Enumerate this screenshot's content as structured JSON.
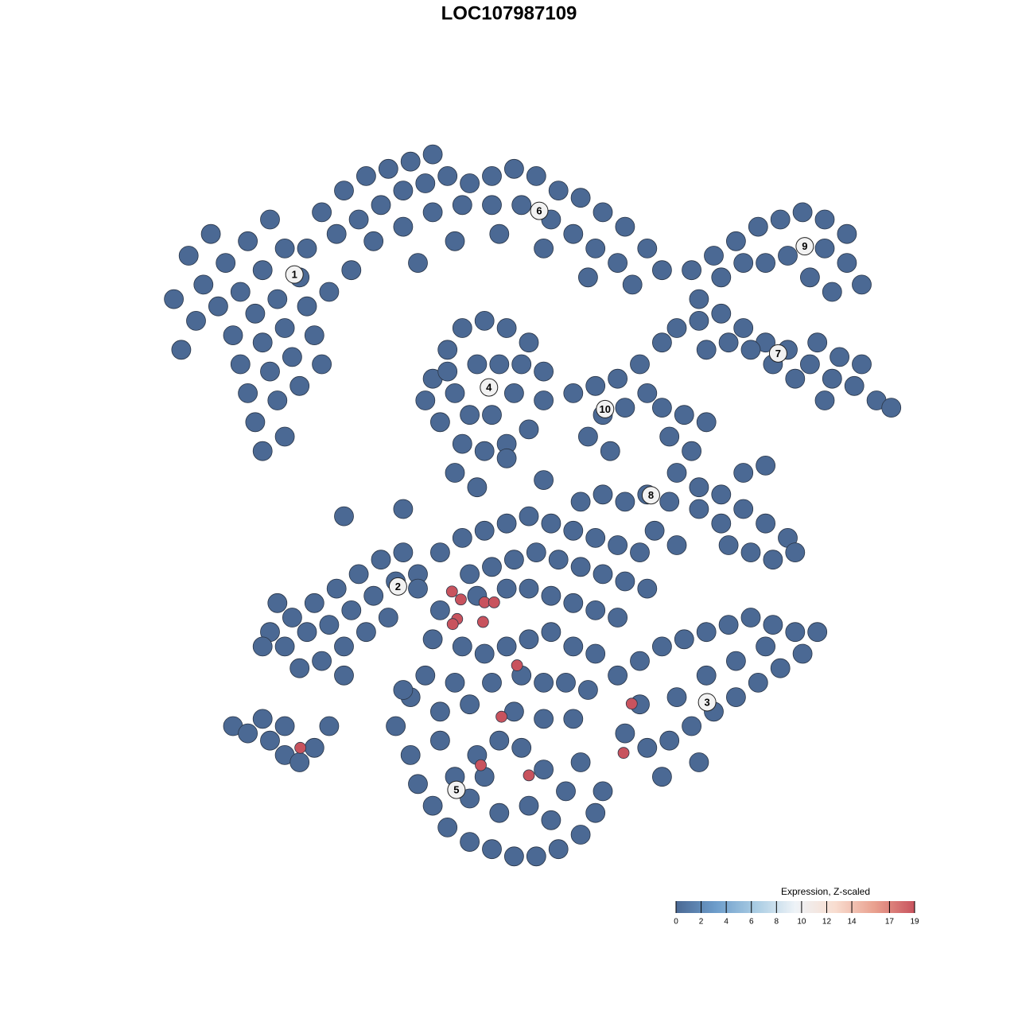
{
  "chart_data": {
    "type": "scatter",
    "title": "LOC107987109",
    "xlim": [
      0,
      100
    ],
    "ylim": [
      0,
      100
    ],
    "colorbar": {
      "title": "Expression, Z-scaled",
      "lim": [
        0,
        19
      ],
      "ticks": [
        0,
        2,
        4,
        6,
        8,
        10,
        12,
        14,
        17,
        19
      ],
      "colors": [
        "#4b6994",
        "#6d9dcb",
        "#a9cce3",
        "#eef3f7",
        "#f8ddd0",
        "#e9a08e",
        "#c8535e"
      ]
    },
    "cluster_labels": [
      {
        "text": "1",
        "x": 18.3,
        "y": 82.4
      },
      {
        "text": "6",
        "x": 51.4,
        "y": 91.2
      },
      {
        "text": "9",
        "x": 87.3,
        "y": 86.3
      },
      {
        "text": "7",
        "x": 83.7,
        "y": 71.5
      },
      {
        "text": "4",
        "x": 44.6,
        "y": 66.8
      },
      {
        "text": "10",
        "x": 60.3,
        "y": 63.8
      },
      {
        "text": "8",
        "x": 66.5,
        "y": 51.9
      },
      {
        "text": "2",
        "x": 32.3,
        "y": 39.3
      },
      {
        "text": "3",
        "x": 74.1,
        "y": 23.3
      },
      {
        "text": "5",
        "x": 40.2,
        "y": 11.2
      }
    ],
    "points": [
      [
        3,
        72,
        0
      ],
      [
        5,
        76,
        0
      ],
      [
        2,
        79,
        0
      ],
      [
        6,
        81,
        0
      ],
      [
        9,
        84,
        0
      ],
      [
        12,
        87,
        0
      ],
      [
        15,
        90,
        0
      ],
      [
        8,
        78,
        0
      ],
      [
        11,
        80,
        0
      ],
      [
        14,
        83,
        0
      ],
      [
        17,
        86,
        0
      ],
      [
        10,
        74,
        0
      ],
      [
        13,
        77,
        0
      ],
      [
        16,
        79,
        0
      ],
      [
        19,
        82,
        0
      ],
      [
        11,
        70,
        0
      ],
      [
        14,
        73,
        0
      ],
      [
        17,
        75,
        0
      ],
      [
        20,
        78,
        0
      ],
      [
        12,
        66,
        0
      ],
      [
        15,
        69,
        0
      ],
      [
        18,
        71,
        0
      ],
      [
        21,
        74,
        0
      ],
      [
        13,
        62,
        0
      ],
      [
        16,
        65,
        0
      ],
      [
        19,
        67,
        0
      ],
      [
        14,
        58,
        0
      ],
      [
        17,
        60,
        0
      ],
      [
        22,
        70,
        0
      ],
      [
        4,
        85,
        0
      ],
      [
        7,
        88,
        0
      ],
      [
        20,
        86,
        0
      ],
      [
        22,
        91,
        0
      ],
      [
        25,
        94,
        0
      ],
      [
        28,
        96,
        0
      ],
      [
        31,
        97,
        0
      ],
      [
        34,
        98,
        0
      ],
      [
        37,
        99,
        0
      ],
      [
        24,
        88,
        0
      ],
      [
        27,
        90,
        0
      ],
      [
        30,
        92,
        0
      ],
      [
        33,
        94,
        0
      ],
      [
        36,
        95,
        0
      ],
      [
        39,
        96,
        0
      ],
      [
        42,
        95,
        0
      ],
      [
        45,
        96,
        0
      ],
      [
        48,
        97,
        0
      ],
      [
        51,
        96,
        0
      ],
      [
        54,
        94,
        0
      ],
      [
        57,
        93,
        0
      ],
      [
        60,
        91,
        0
      ],
      [
        63,
        89,
        0
      ],
      [
        66,
        86,
        0
      ],
      [
        68,
        83,
        0
      ],
      [
        29,
        87,
        0
      ],
      [
        33,
        89,
        0
      ],
      [
        37,
        91,
        0
      ],
      [
        41,
        92,
        0
      ],
      [
        45,
        92,
        0
      ],
      [
        49,
        92,
        0
      ],
      [
        53,
        90,
        0
      ],
      [
        56,
        88,
        0
      ],
      [
        59,
        86,
        0
      ],
      [
        62,
        84,
        0
      ],
      [
        40,
        87,
        0
      ],
      [
        46,
        88,
        0
      ],
      [
        52,
        86,
        0
      ],
      [
        58,
        82,
        0
      ],
      [
        64,
        81,
        0
      ],
      [
        35,
        84,
        0
      ],
      [
        26,
        83,
        0
      ],
      [
        23,
        80,
        0
      ],
      [
        37,
        68,
        0
      ],
      [
        39,
        72,
        0
      ],
      [
        41,
        75,
        0
      ],
      [
        44,
        76,
        0
      ],
      [
        47,
        75,
        0
      ],
      [
        50,
        73,
        0
      ],
      [
        52,
        69,
        0
      ],
      [
        52,
        65,
        0
      ],
      [
        50,
        61,
        0
      ],
      [
        47,
        59,
        0
      ],
      [
        44,
        58,
        0
      ],
      [
        41,
        59,
        0
      ],
      [
        38,
        62,
        0
      ],
      [
        36,
        65,
        0
      ],
      [
        40,
        66,
        0
      ],
      [
        43,
        70,
        0
      ],
      [
        46,
        70,
        0
      ],
      [
        48,
        66,
        0
      ],
      [
        45,
        63,
        0
      ],
      [
        42,
        63,
        0
      ],
      [
        39,
        69,
        0
      ],
      [
        49,
        70,
        0
      ],
      [
        72,
        83,
        0
      ],
      [
        75,
        85,
        0
      ],
      [
        78,
        87,
        0
      ],
      [
        81,
        89,
        0
      ],
      [
        84,
        90,
        0
      ],
      [
        87,
        91,
        0
      ],
      [
        90,
        90,
        0
      ],
      [
        93,
        88,
        0
      ],
      [
        93,
        84,
        0
      ],
      [
        91,
        80,
        0
      ],
      [
        88,
        82,
        0
      ],
      [
        85,
        85,
        0
      ],
      [
        82,
        84,
        0
      ],
      [
        79,
        84,
        0
      ],
      [
        76,
        82,
        0
      ],
      [
        73,
        79,
        0
      ],
      [
        90,
        86,
        0
      ],
      [
        95,
        81,
        0
      ],
      [
        70,
        75,
        0
      ],
      [
        73,
        76,
        0
      ],
      [
        76,
        77,
        0
      ],
      [
        79,
        75,
        0
      ],
      [
        82,
        73,
        0
      ],
      [
        85,
        72,
        0
      ],
      [
        88,
        70,
        0
      ],
      [
        91,
        68,
        0
      ],
      [
        94,
        67,
        0
      ],
      [
        97,
        65,
        0
      ],
      [
        99,
        64,
        0
      ],
      [
        95,
        70,
        0
      ],
      [
        92,
        71,
        0
      ],
      [
        86,
        68,
        0
      ],
      [
        83,
        70,
        0
      ],
      [
        80,
        72,
        0
      ],
      [
        77,
        73,
        0
      ],
      [
        74,
        72,
        0
      ],
      [
        89,
        73,
        0
      ],
      [
        90,
        65,
        0
      ],
      [
        59,
        67,
        0
      ],
      [
        62,
        68,
        0
      ],
      [
        65,
        70,
        0
      ],
      [
        60,
        63,
        0
      ],
      [
        63,
        64,
        0
      ],
      [
        58,
        60,
        0
      ],
      [
        61,
        58,
        0
      ],
      [
        66,
        66,
        0
      ],
      [
        56,
        66,
        0
      ],
      [
        68,
        73,
        0
      ],
      [
        68,
        64,
        0
      ],
      [
        71,
        63,
        0
      ],
      [
        74,
        62,
        0
      ],
      [
        69,
        60,
        0
      ],
      [
        72,
        58,
        0
      ],
      [
        70,
        55,
        0
      ],
      [
        73,
        53,
        0
      ],
      [
        76,
        52,
        0
      ],
      [
        79,
        50,
        0
      ],
      [
        82,
        48,
        0
      ],
      [
        85,
        46,
        0
      ],
      [
        77,
        45,
        0
      ],
      [
        80,
        44,
        0
      ],
      [
        83,
        43,
        0
      ],
      [
        86,
        44,
        0
      ],
      [
        76,
        48,
        0
      ],
      [
        73,
        50,
        0
      ],
      [
        79,
        55,
        0
      ],
      [
        82,
        56,
        0
      ],
      [
        60,
        52,
        0
      ],
      [
        63,
        51,
        0
      ],
      [
        66,
        52,
        0
      ],
      [
        69,
        51,
        0
      ],
      [
        57,
        51,
        0
      ],
      [
        15,
        33,
        0
      ],
      [
        18,
        35,
        0
      ],
      [
        21,
        37,
        0
      ],
      [
        24,
        39,
        0
      ],
      [
        27,
        41,
        0
      ],
      [
        30,
        43,
        0
      ],
      [
        33,
        44,
        0
      ],
      [
        14,
        31,
        0
      ],
      [
        17,
        31,
        0
      ],
      [
        20,
        33,
        0
      ],
      [
        23,
        34,
        0
      ],
      [
        26,
        36,
        0
      ],
      [
        29,
        38,
        0
      ],
      [
        32,
        40,
        0
      ],
      [
        35,
        41,
        0
      ],
      [
        19,
        28,
        0
      ],
      [
        22,
        29,
        0
      ],
      [
        25,
        31,
        0
      ],
      [
        28,
        33,
        0
      ],
      [
        31,
        35,
        0
      ],
      [
        16,
        37,
        0
      ],
      [
        25,
        27,
        0
      ],
      [
        38,
        44,
        0
      ],
      [
        41,
        46,
        0
      ],
      [
        44,
        47,
        0
      ],
      [
        47,
        48,
        0
      ],
      [
        50,
        49,
        0
      ],
      [
        53,
        48,
        0
      ],
      [
        56,
        47,
        0
      ],
      [
        59,
        46,
        0
      ],
      [
        62,
        45,
        0
      ],
      [
        65,
        44,
        0
      ],
      [
        42,
        41,
        0
      ],
      [
        45,
        42,
        0
      ],
      [
        48,
        43,
        0
      ],
      [
        51,
        44,
        0
      ],
      [
        54,
        43,
        0
      ],
      [
        57,
        42,
        0
      ],
      [
        60,
        41,
        0
      ],
      [
        63,
        40,
        0
      ],
      [
        66,
        39,
        0
      ],
      [
        38,
        36,
        0
      ],
      [
        43,
        38,
        0
      ],
      [
        47,
        39,
        0
      ],
      [
        50,
        39,
        0
      ],
      [
        53,
        38,
        0
      ],
      [
        56,
        37,
        0
      ],
      [
        59,
        36,
        0
      ],
      [
        62,
        35,
        0
      ],
      [
        37,
        32,
        0
      ],
      [
        41,
        31,
        0
      ],
      [
        44,
        30,
        0
      ],
      [
        47,
        31,
        0
      ],
      [
        50,
        32,
        0
      ],
      [
        53,
        33,
        0
      ],
      [
        56,
        31,
        0
      ],
      [
        59,
        30,
        0
      ],
      [
        36,
        27,
        0
      ],
      [
        40,
        26,
        0
      ],
      [
        45,
        26,
        0
      ],
      [
        49,
        27,
        0
      ],
      [
        52,
        26,
        0
      ],
      [
        55,
        26,
        0
      ],
      [
        58,
        25,
        0
      ],
      [
        67,
        47,
        0
      ],
      [
        70,
        45,
        0
      ],
      [
        35,
        39,
        0
      ],
      [
        34,
        24,
        0
      ],
      [
        38,
        22,
        0
      ],
      [
        42,
        23,
        0
      ],
      [
        48,
        22,
        0
      ],
      [
        52,
        21,
        0
      ],
      [
        56,
        21,
        0
      ],
      [
        62,
        27,
        0
      ],
      [
        65,
        29,
        0
      ],
      [
        68,
        31,
        0
      ],
      [
        71,
        32,
        0
      ],
      [
        74,
        33,
        0
      ],
      [
        77,
        34,
        0
      ],
      [
        80,
        35,
        0
      ],
      [
        83,
        34,
        0
      ],
      [
        86,
        33,
        0
      ],
      [
        89,
        33,
        0
      ],
      [
        87,
        30,
        0
      ],
      [
        84,
        28,
        0
      ],
      [
        81,
        26,
        0
      ],
      [
        78,
        24,
        0
      ],
      [
        75,
        22,
        0
      ],
      [
        72,
        20,
        0
      ],
      [
        69,
        18,
        0
      ],
      [
        66,
        17,
        0
      ],
      [
        63,
        19,
        0
      ],
      [
        65,
        23,
        0
      ],
      [
        70,
        24,
        0
      ],
      [
        74,
        27,
        0
      ],
      [
        78,
        29,
        0
      ],
      [
        82,
        31,
        0
      ],
      [
        73,
        15,
        0
      ],
      [
        68,
        13,
        0
      ],
      [
        32,
        20,
        0
      ],
      [
        34,
        16,
        0
      ],
      [
        35,
        12,
        0
      ],
      [
        37,
        9,
        0
      ],
      [
        39,
        6,
        0
      ],
      [
        42,
        4,
        0
      ],
      [
        45,
        3,
        0
      ],
      [
        48,
        2,
        0
      ],
      [
        51,
        2,
        0
      ],
      [
        54,
        3,
        0
      ],
      [
        57,
        5,
        0
      ],
      [
        59,
        8,
        0
      ],
      [
        60,
        11,
        0
      ],
      [
        40,
        13,
        0
      ],
      [
        43,
        16,
        0
      ],
      [
        46,
        18,
        0
      ],
      [
        49,
        17,
        0
      ],
      [
        52,
        14,
        0
      ],
      [
        55,
        11,
        0
      ],
      [
        38,
        18,
        0
      ],
      [
        42,
        10,
        0
      ],
      [
        46,
        8,
        0
      ],
      [
        50,
        9,
        0
      ],
      [
        53,
        7,
        0
      ],
      [
        44,
        13,
        0
      ],
      [
        57,
        15,
        0
      ],
      [
        33,
        25,
        0
      ],
      [
        10,
        20,
        0
      ],
      [
        12,
        19,
        0
      ],
      [
        15,
        18,
        0
      ],
      [
        17,
        16,
        0
      ],
      [
        19,
        15,
        0
      ],
      [
        21,
        17,
        0
      ],
      [
        23,
        20,
        0
      ],
      [
        17,
        20,
        0
      ],
      [
        14,
        21,
        0
      ],
      [
        25,
        49,
        0
      ],
      [
        33,
        50,
        0
      ],
      [
        43,
        53,
        0
      ],
      [
        47,
        57,
        0
      ],
      [
        52,
        54,
        0
      ],
      [
        40,
        55,
        0
      ],
      [
        39.6,
        38.6,
        19
      ],
      [
        40.8,
        37.5,
        19
      ],
      [
        44.0,
        37.1,
        19
      ],
      [
        45.3,
        37.1,
        19
      ],
      [
        40.3,
        34.8,
        19
      ],
      [
        39.7,
        34.1,
        19
      ],
      [
        43.8,
        34.4,
        19
      ],
      [
        48.4,
        28.4,
        19
      ],
      [
        46.3,
        21.3,
        19
      ],
      [
        63.9,
        23.1,
        19
      ],
      [
        62.8,
        16.3,
        19
      ],
      [
        43.5,
        14.6,
        19
      ],
      [
        50.0,
        13.2,
        19
      ],
      [
        19.1,
        17.0,
        19
      ]
    ]
  }
}
